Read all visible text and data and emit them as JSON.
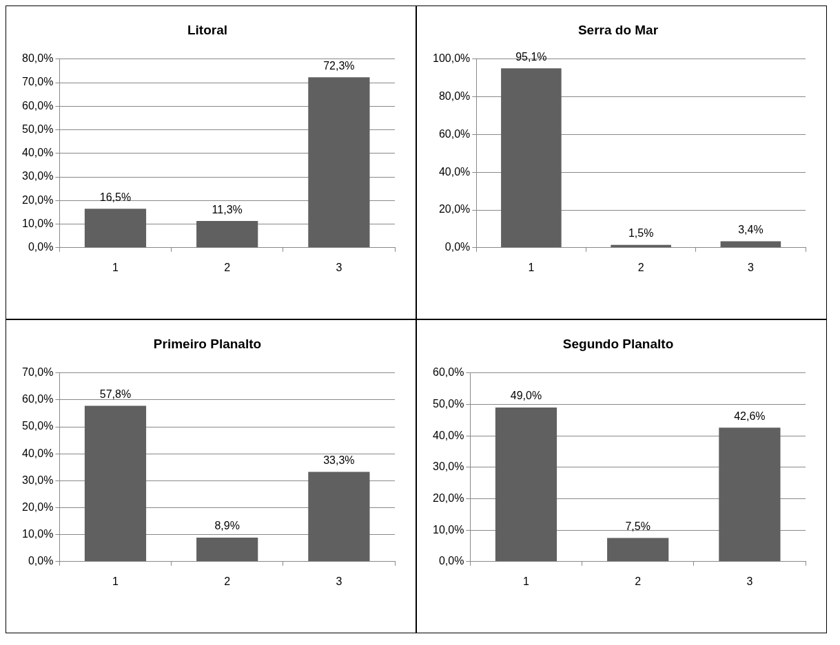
{
  "chart_data": [
    {
      "type": "bar",
      "title": "Litoral",
      "categories": [
        "1",
        "2",
        "3"
      ],
      "values": [
        16.5,
        11.3,
        72.3
      ],
      "value_labels": [
        "16,5%",
        "11,3%",
        "72,3%"
      ],
      "color": "#606060",
      "ylim": [
        0,
        80
      ],
      "yticks": [
        {
          "value": 0,
          "label": "0,0%"
        },
        {
          "value": 10,
          "label": "10,0%"
        },
        {
          "value": 20,
          "label": "20,0%"
        },
        {
          "value": 30,
          "label": "30,0%"
        },
        {
          "value": 40,
          "label": "40,0%"
        },
        {
          "value": 50,
          "label": "50,0%"
        },
        {
          "value": 60,
          "label": "60,0%"
        },
        {
          "value": 70,
          "label": "70,0%"
        },
        {
          "value": 80,
          "label": "80,0%"
        }
      ],
      "grid": "y",
      "legend": false
    },
    {
      "type": "bar",
      "title": "Serra do Mar",
      "categories": [
        "1",
        "2",
        "3"
      ],
      "values": [
        95.1,
        1.5,
        3.4
      ],
      "value_labels": [
        "95,1%",
        "1,5%",
        "3,4%"
      ],
      "color": "#606060",
      "ylim": [
        0,
        100
      ],
      "yticks": [
        {
          "value": 0,
          "label": "0,0%"
        },
        {
          "value": 20,
          "label": "20,0%"
        },
        {
          "value": 40,
          "label": "40,0%"
        },
        {
          "value": 60,
          "label": "60,0%"
        },
        {
          "value": 80,
          "label": "80,0%"
        },
        {
          "value": 100,
          "label": "100,0%"
        }
      ],
      "grid": "y",
      "legend": false
    },
    {
      "type": "bar",
      "title": "Primeiro Planalto",
      "categories": [
        "1",
        "2",
        "3"
      ],
      "values": [
        57.8,
        8.9,
        33.3
      ],
      "value_labels": [
        "57,8%",
        "8,9%",
        "33,3%"
      ],
      "color": "#606060",
      "ylim": [
        0,
        70
      ],
      "yticks": [
        {
          "value": 0,
          "label": "0,0%"
        },
        {
          "value": 10,
          "label": "10,0%"
        },
        {
          "value": 20,
          "label": "20,0%"
        },
        {
          "value": 30,
          "label": "30,0%"
        },
        {
          "value": 40,
          "label": "40,0%"
        },
        {
          "value": 50,
          "label": "50,0%"
        },
        {
          "value": 60,
          "label": "60,0%"
        },
        {
          "value": 70,
          "label": "70,0%"
        }
      ],
      "grid": "y",
      "legend": false
    },
    {
      "type": "bar",
      "title": "Segundo Planalto",
      "categories": [
        "1",
        "2",
        "3"
      ],
      "values": [
        49.0,
        7.5,
        42.6
      ],
      "value_labels": [
        "49,0%",
        "7,5%",
        "42,6%"
      ],
      "color": "#606060",
      "ylim": [
        0,
        60
      ],
      "yticks": [
        {
          "value": 0,
          "label": "0,0%"
        },
        {
          "value": 10,
          "label": "10,0%"
        },
        {
          "value": 20,
          "label": "20,0%"
        },
        {
          "value": 30,
          "label": "30,0%"
        },
        {
          "value": 40,
          "label": "40,0%"
        },
        {
          "value": 50,
          "label": "50,0%"
        },
        {
          "value": 60,
          "label": "60,0%"
        }
      ],
      "grid": "y",
      "legend": false
    }
  ]
}
